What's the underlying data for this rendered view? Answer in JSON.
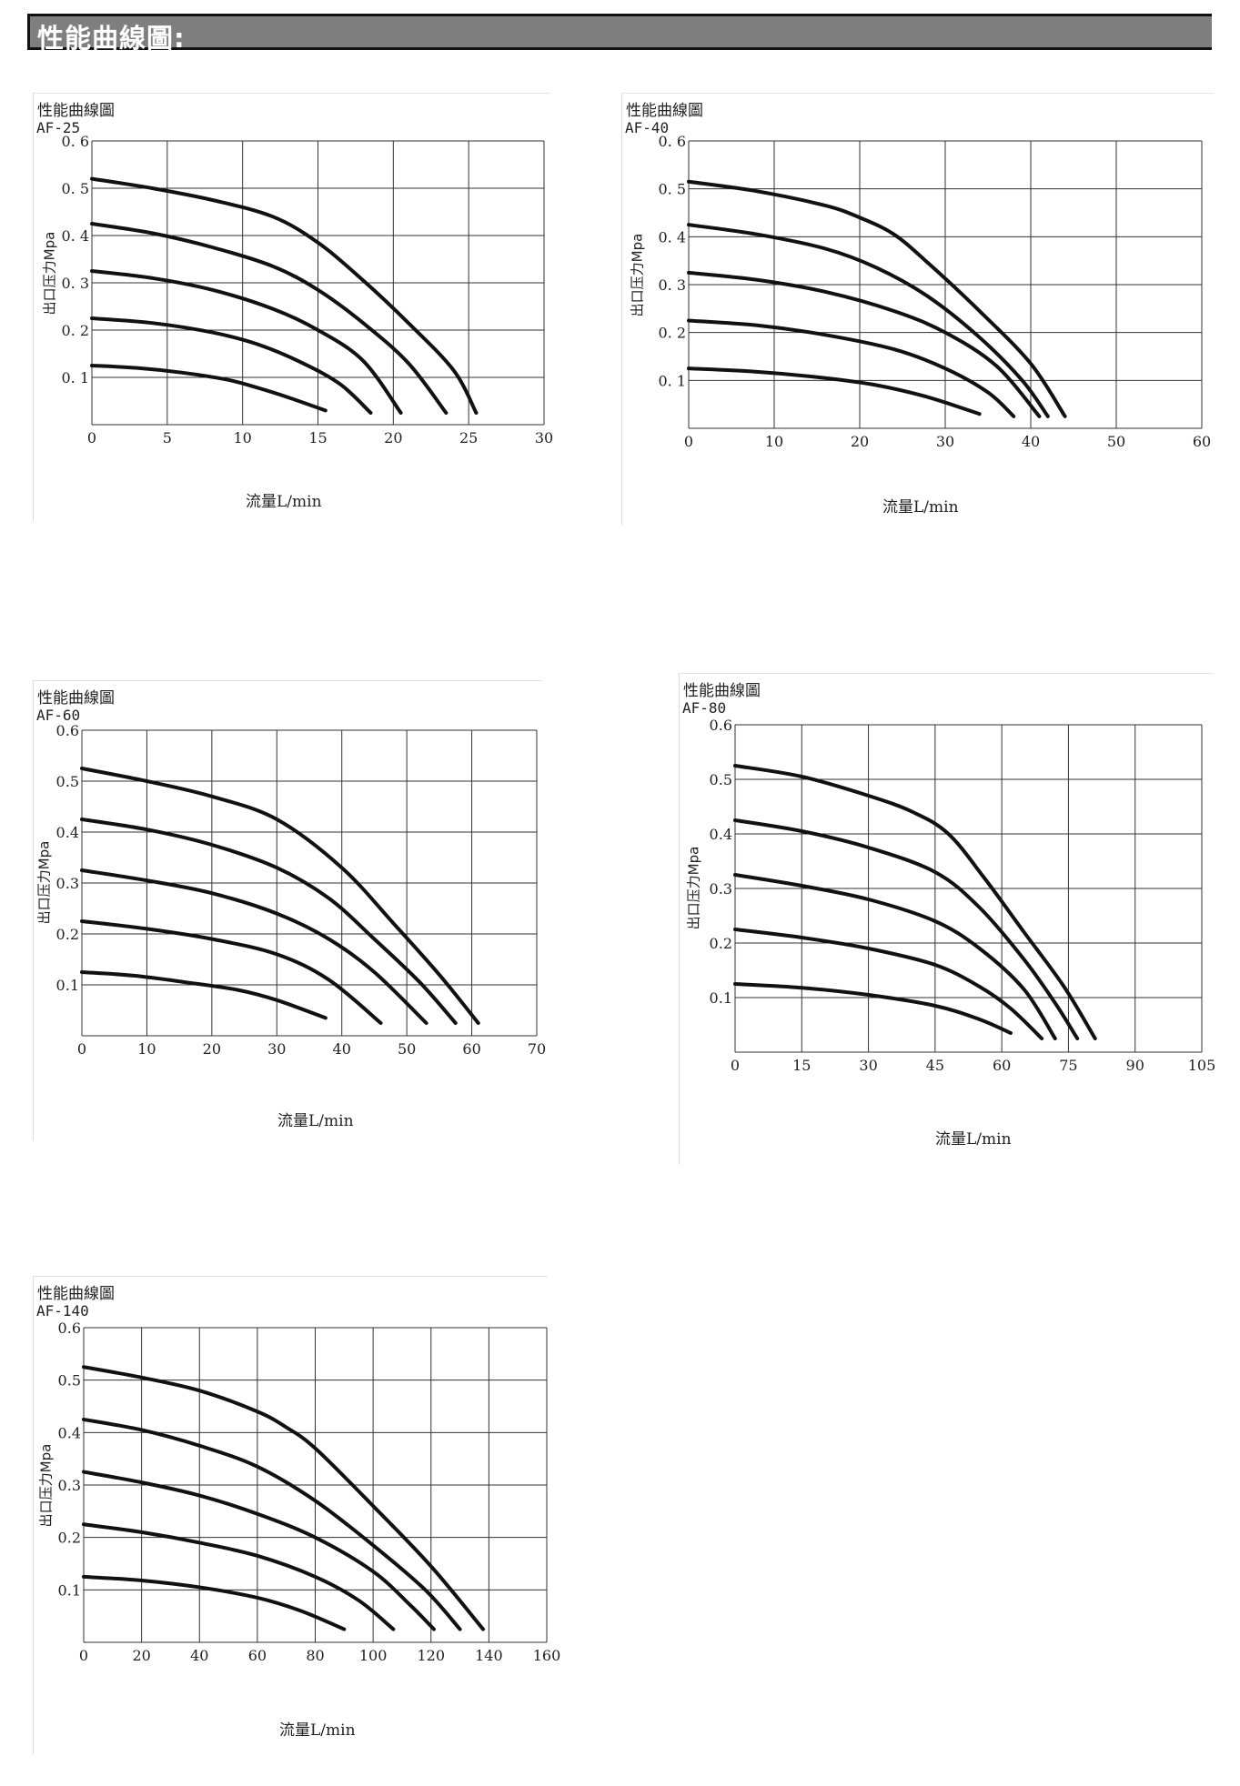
{
  "header": {
    "title": "性能曲線圖:"
  },
  "charts": [
    {
      "title": "性能曲線圖",
      "model": "AF-25",
      "ylabel": "出口压力Mpa",
      "xlabel": "流量L/min",
      "x_ticks": [
        "0",
        "5",
        "10",
        "15",
        "20",
        "25",
        "30"
      ],
      "y_ticks": [
        "0. 1",
        "0. 2",
        "0. 3",
        "0. 4",
        "0. 5",
        "0. 6"
      ]
    },
    {
      "title": "性能曲線圖",
      "model": "AF-40",
      "ylabel": "出口压力Mpa",
      "xlabel": "流量L/min",
      "x_ticks": [
        "0",
        "10",
        "20",
        "30",
        "40",
        "50",
        "60"
      ],
      "y_ticks": [
        "0. 1",
        "0. 2",
        "0. 3",
        "0. 4",
        "0. 5",
        "0. 6"
      ]
    },
    {
      "title": "性能曲線圖",
      "model": "AF-60",
      "ylabel": "出口压力Mpa",
      "xlabel": "流量L/min",
      "x_ticks": [
        "0",
        "10",
        "20",
        "30",
        "40",
        "50",
        "60",
        "70"
      ],
      "y_ticks": [
        "0.1",
        "0.2",
        "0.3",
        "0.4",
        "0.5",
        "0.6"
      ]
    },
    {
      "title": "性能曲線圖",
      "model": "AF-80",
      "ylabel": "出口压力Mpa",
      "xlabel": "流量L/min",
      "x_ticks": [
        "0",
        "15",
        "30",
        "45",
        "60",
        "75",
        "90",
        "105"
      ],
      "y_ticks": [
        "0.1",
        "0.2",
        "0.3",
        "0.4",
        "0.5",
        "0.6"
      ]
    },
    {
      "title": "性能曲線圖",
      "model": "AF-140",
      "ylabel": "出口压力Mpa",
      "xlabel": "流量L/min",
      "x_ticks": [
        "0",
        "20",
        "40",
        "60",
        "80",
        "100",
        "120",
        "140",
        "160"
      ],
      "y_ticks": [
        "0.1",
        "0.2",
        "0.3",
        "0.4",
        "0.5",
        "0.6"
      ]
    }
  ],
  "chart_data": [
    {
      "type": "line",
      "title": "AF-25",
      "xlabel": "流量L/min",
      "ylabel": "出口压力Mpa",
      "xlim": [
        0,
        30
      ],
      "ylim": [
        0,
        0.6
      ],
      "grid": true,
      "series": [
        {
          "x": [
            0,
            3,
            6,
            9,
            11,
            13,
            15.5
          ],
          "y": [
            0.125,
            0.12,
            0.11,
            0.095,
            0.078,
            0.058,
            0.03
          ]
        },
        {
          "x": [
            0,
            4,
            8,
            11,
            14,
            16.5,
            18.5
          ],
          "y": [
            0.225,
            0.215,
            0.195,
            0.17,
            0.13,
            0.085,
            0.025
          ]
        },
        {
          "x": [
            0,
            4,
            8,
            12,
            15,
            18,
            20.5
          ],
          "y": [
            0.325,
            0.31,
            0.285,
            0.245,
            0.2,
            0.135,
            0.025
          ]
        },
        {
          "x": [
            0,
            4,
            8,
            12,
            15,
            18,
            21,
            23.5
          ],
          "y": [
            0.425,
            0.405,
            0.375,
            0.335,
            0.285,
            0.215,
            0.13,
            0.025
          ]
        },
        {
          "x": [
            0,
            4,
            8,
            12,
            15,
            18,
            21,
            24,
            25.5
          ],
          "y": [
            0.52,
            0.5,
            0.475,
            0.44,
            0.385,
            0.305,
            0.215,
            0.115,
            0.025
          ]
        }
      ]
    },
    {
      "type": "line",
      "title": "AF-40",
      "xlabel": "流量L/min",
      "ylabel": "出口压力Mpa",
      "xlim": [
        0,
        60
      ],
      "ylim": [
        0,
        0.6
      ],
      "grid": true,
      "series": [
        {
          "x": [
            0,
            8,
            16,
            22,
            28,
            34
          ],
          "y": [
            0.125,
            0.118,
            0.105,
            0.09,
            0.065,
            0.03
          ]
        },
        {
          "x": [
            0,
            8,
            16,
            24,
            30,
            35,
            38
          ],
          "y": [
            0.225,
            0.215,
            0.195,
            0.165,
            0.125,
            0.075,
            0.025
          ]
        },
        {
          "x": [
            0,
            8,
            16,
            24,
            30,
            36,
            41
          ],
          "y": [
            0.325,
            0.31,
            0.285,
            0.245,
            0.2,
            0.13,
            0.025
          ]
        },
        {
          "x": [
            0,
            8,
            16,
            22,
            28,
            34,
            39,
            42
          ],
          "y": [
            0.425,
            0.405,
            0.375,
            0.335,
            0.275,
            0.19,
            0.1,
            0.025
          ]
        },
        {
          "x": [
            0,
            8,
            16,
            20,
            24,
            28,
            34,
            40,
            44
          ],
          "y": [
            0.515,
            0.495,
            0.465,
            0.44,
            0.405,
            0.345,
            0.245,
            0.135,
            0.025
          ]
        }
      ]
    },
    {
      "type": "line",
      "title": "AF-60",
      "xlabel": "流量L/min",
      "ylabel": "出口压力Mpa",
      "xlim": [
        0,
        70
      ],
      "ylim": [
        0,
        0.6
      ],
      "grid": true,
      "series": [
        {
          "x": [
            0,
            8,
            16,
            24,
            30,
            37.5
          ],
          "y": [
            0.125,
            0.118,
            0.105,
            0.09,
            0.07,
            0.035
          ]
        },
        {
          "x": [
            0,
            10,
            20,
            30,
            38,
            46
          ],
          "y": [
            0.225,
            0.21,
            0.19,
            0.16,
            0.11,
            0.025
          ]
        },
        {
          "x": [
            0,
            10,
            20,
            30,
            38,
            45,
            53
          ],
          "y": [
            0.325,
            0.305,
            0.28,
            0.24,
            0.19,
            0.125,
            0.025
          ]
        },
        {
          "x": [
            0,
            10,
            20,
            30,
            38,
            45,
            52,
            57.5
          ],
          "y": [
            0.425,
            0.405,
            0.375,
            0.33,
            0.27,
            0.19,
            0.105,
            0.025
          ]
        },
        {
          "x": [
            0,
            10,
            20,
            30,
            40,
            48,
            55,
            61
          ],
          "y": [
            0.525,
            0.5,
            0.47,
            0.425,
            0.33,
            0.22,
            0.12,
            0.025
          ]
        }
      ]
    },
    {
      "type": "line",
      "title": "AF-80",
      "xlabel": "流量L/min",
      "ylabel": "出口压力Mpa",
      "xlim": [
        0,
        105
      ],
      "ylim": [
        0,
        0.6
      ],
      "grid": true,
      "series": [
        {
          "x": [
            0,
            15,
            30,
            45,
            55,
            62
          ],
          "y": [
            0.125,
            0.118,
            0.105,
            0.085,
            0.06,
            0.035
          ]
        },
        {
          "x": [
            0,
            15,
            30,
            45,
            55,
            62,
            69
          ],
          "y": [
            0.225,
            0.21,
            0.19,
            0.16,
            0.12,
            0.08,
            0.025
          ]
        },
        {
          "x": [
            0,
            15,
            30,
            45,
            55,
            65,
            72
          ],
          "y": [
            0.325,
            0.305,
            0.28,
            0.24,
            0.19,
            0.115,
            0.025
          ]
        },
        {
          "x": [
            0,
            15,
            30,
            45,
            55,
            65,
            72,
            77
          ],
          "y": [
            0.425,
            0.405,
            0.375,
            0.33,
            0.265,
            0.17,
            0.09,
            0.025
          ]
        },
        {
          "x": [
            0,
            15,
            30,
            40,
            48,
            56,
            65,
            74,
            81
          ],
          "y": [
            0.525,
            0.505,
            0.47,
            0.44,
            0.4,
            0.32,
            0.22,
            0.12,
            0.025
          ]
        }
      ]
    },
    {
      "type": "line",
      "title": "AF-140",
      "xlabel": "流量L/min",
      "ylabel": "出口压力Mpa",
      "xlim": [
        0,
        160
      ],
      "ylim": [
        0,
        0.6
      ],
      "grid": true,
      "series": [
        {
          "x": [
            0,
            20,
            40,
            60,
            75,
            90
          ],
          "y": [
            0.125,
            0.118,
            0.105,
            0.085,
            0.06,
            0.025
          ]
        },
        {
          "x": [
            0,
            20,
            40,
            60,
            80,
            95,
            107
          ],
          "y": [
            0.225,
            0.21,
            0.19,
            0.165,
            0.125,
            0.08,
            0.025
          ]
        },
        {
          "x": [
            0,
            20,
            40,
            60,
            80,
            100,
            113,
            121
          ],
          "y": [
            0.325,
            0.305,
            0.28,
            0.245,
            0.2,
            0.135,
            0.07,
            0.025
          ]
        },
        {
          "x": [
            0,
            20,
            40,
            60,
            80,
            100,
            118,
            130
          ],
          "y": [
            0.425,
            0.405,
            0.375,
            0.335,
            0.27,
            0.185,
            0.1,
            0.025
          ]
        },
        {
          "x": [
            0,
            20,
            40,
            60,
            70,
            80,
            100,
            120,
            138
          ],
          "y": [
            0.525,
            0.505,
            0.48,
            0.44,
            0.41,
            0.37,
            0.26,
            0.145,
            0.025
          ]
        }
      ]
    }
  ]
}
